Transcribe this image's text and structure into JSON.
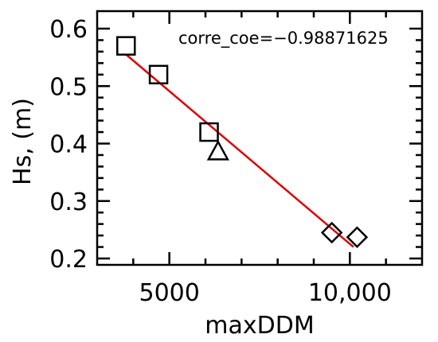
{
  "chart_data": {
    "type": "scatter",
    "title": "",
    "xlabel": "maxDDM",
    "ylabel": "Hs, (m)",
    "xlim": [
      3000,
      12000
    ],
    "ylim": [
      0.2,
      0.6
    ],
    "x_ticks": [
      5000,
      10000
    ],
    "x_tick_labels": [
      "5000",
      "10,000"
    ],
    "y_ticks": [
      0.2,
      0.3,
      0.4,
      0.5,
      0.6
    ],
    "y_tick_labels": [
      "0.2",
      "0.3",
      "0.4",
      "0.5",
      "0.6"
    ],
    "annotation": "corre_coe=−0.98871625",
    "grid": false,
    "series": [
      {
        "marker": "square",
        "x": [
          3800,
          4700,
          6100
        ],
        "y": [
          0.57,
          0.52,
          0.42
        ]
      },
      {
        "marker": "triangle",
        "x": [
          6350
        ],
        "y": [
          0.385
        ]
      },
      {
        "marker": "diamond",
        "x": [
          9500,
          10200
        ],
        "y": [
          0.245,
          0.237
        ]
      }
    ],
    "fit_line": {
      "x": [
        3800,
        10100
      ],
      "y": [
        0.555,
        0.22
      ],
      "color": "#e00000"
    }
  }
}
